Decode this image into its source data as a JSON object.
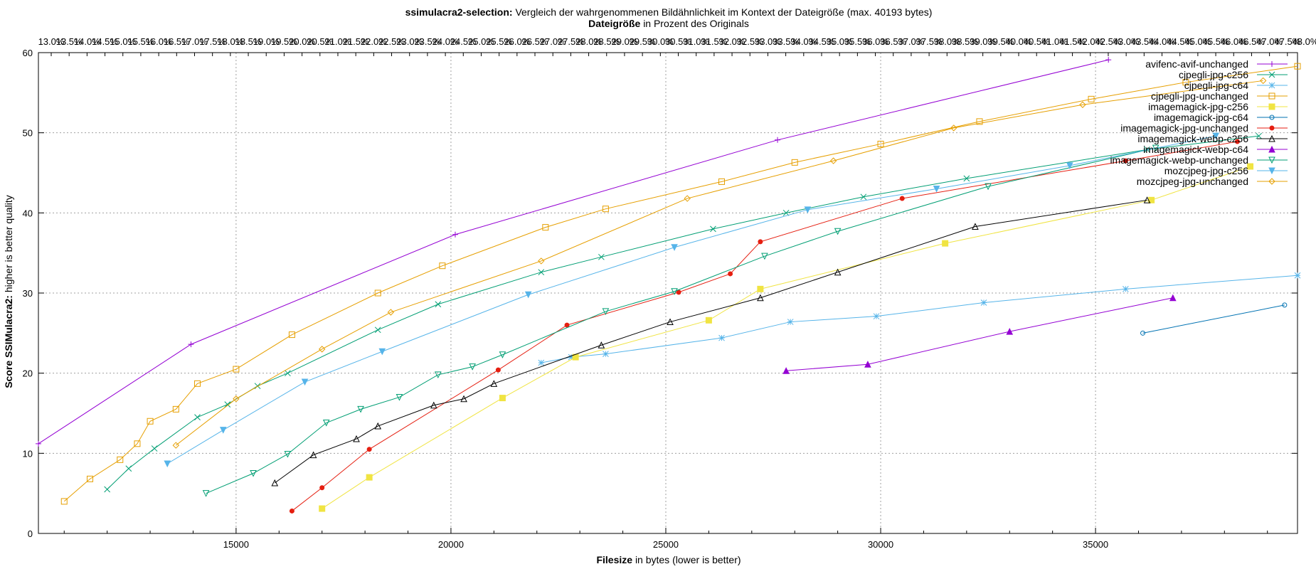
{
  "chart_data": {
    "type": "line",
    "title_bold": "ssimulacra2-selection:",
    "title_rest": "Vergleich der wahrgenommenen Bildähnlichkeit im Kontext der Dateigröße (max. 40193 bytes)",
    "top_axis_bold": "Dateigröße",
    "top_axis_rest": "in Prozent des Originals",
    "xlabel_bold": "Filesize",
    "xlabel_rest": "in bytes (lower is better)",
    "ylabel_bold": "Score SSIMulacra2:",
    "ylabel_rest": "higher is better quality",
    "xlim": [
      10400,
      39700
    ],
    "ylim": [
      0,
      60
    ],
    "x_ticks": [
      15000,
      20000,
      25000,
      30000,
      35000
    ],
    "y_ticks": [
      0,
      10,
      20,
      30,
      40,
      50,
      60
    ],
    "top_ticks": [
      "13.0%",
      "13.5%",
      "14.0%",
      "14.5%",
      "15.0%",
      "15.5%",
      "16.0%",
      "16.5%",
      "17.0%",
      "17.5%",
      "18.0%",
      "18.5%",
      "19.0%",
      "19.5%",
      "20.0%",
      "20.5%",
      "21.0%",
      "21.5%",
      "22.0%",
      "22.5%",
      "23.0%",
      "23.5%",
      "24.0%",
      "24.5%",
      "25.0%",
      "25.5%",
      "26.0%",
      "26.5%",
      "27.0%",
      "27.5%",
      "28.0%",
      "28.5%",
      "29.0%",
      "29.5%",
      "30.0%",
      "30.5%",
      "31.0%",
      "31.5%",
      "32.0%",
      "32.5%",
      "33.0%",
      "33.5%",
      "34.0%",
      "34.5%",
      "35.0%",
      "35.5%",
      "36.0%",
      "36.5%",
      "37.0%",
      "37.5%",
      "38.0%",
      "38.5%",
      "39.0%",
      "39.5%",
      "40.0%",
      "40.5%",
      "41.0%",
      "41.5%",
      "42.0%",
      "42.5%",
      "43.0%",
      "43.5%",
      "44.0%",
      "44.5%",
      "45.0%",
      "45.5%",
      "46.0%",
      "46.5%",
      "47.0%",
      "47.5%",
      "48.0%"
    ],
    "grid": true,
    "legend_position": "top-right",
    "series": [
      {
        "name": "avifenc-avif-unchanged",
        "color": "#9400d3",
        "marker": "plus",
        "x": [
          10400,
          13950,
          20100,
          27600,
          35300
        ],
        "y": [
          11.2,
          23.6,
          37.3,
          49.1,
          59.1
        ]
      },
      {
        "name": "cjpegli-jpg-c256",
        "color": "#009e73",
        "marker": "x",
        "x": [
          12000,
          12500,
          13100,
          14100,
          14800,
          15500,
          16200,
          18300,
          19700,
          22100,
          23500,
          26100,
          27800,
          29600,
          32000,
          36200,
          38800
        ],
        "y": [
          5.5,
          8.1,
          10.6,
          14.5,
          16.1,
          18.4,
          20.0,
          25.4,
          28.6,
          32.6,
          34.5,
          38.0,
          40.0,
          42.0,
          44.3,
          47.9,
          49.6
        ]
      },
      {
        "name": "cjpegli-jpg-c64",
        "color": "#56b4e9",
        "marker": "star",
        "x": [
          22100,
          22800,
          23600,
          26300,
          27900,
          29900,
          32400,
          35700,
          39700
        ],
        "y": [
          21.3,
          22.0,
          22.4,
          24.4,
          26.4,
          27.1,
          28.8,
          30.5,
          32.2
        ]
      },
      {
        "name": "cjpegli-jpg-unchanged",
        "color": "#e69f00",
        "marker": "square",
        "x": [
          11000,
          11600,
          12300,
          12700,
          13000,
          13600,
          14100,
          15000,
          16300,
          18300,
          19800,
          22200,
          23600,
          26300,
          28000,
          30000,
          32300,
          34900,
          37100,
          39700
        ],
        "y": [
          4.0,
          6.8,
          9.2,
          11.2,
          14.0,
          15.5,
          18.7,
          20.5,
          24.8,
          30.0,
          33.4,
          38.2,
          40.5,
          43.9,
          46.3,
          48.6,
          51.4,
          54.2,
          56.3,
          58.3
        ]
      },
      {
        "name": "imagemagick-jpg-c256",
        "color": "#f0e442",
        "marker": "square-filled",
        "x": [
          17000,
          18100,
          21200,
          22900,
          26000,
          27200,
          31500,
          36300,
          38600
        ],
        "y": [
          3.1,
          7.0,
          16.9,
          22.0,
          26.6,
          30.5,
          36.2,
          41.6,
          45.8
        ]
      },
      {
        "name": "imagemagick-jpg-c64",
        "color": "#0072b2",
        "marker": "circle",
        "x": [
          36100,
          39400
        ],
        "y": [
          25.0,
          28.5
        ]
      },
      {
        "name": "imagemagick-jpg-unchanged",
        "color": "#e51e10",
        "marker": "circle-filled",
        "x": [
          16300,
          17000,
          18100,
          21100,
          22700,
          25300,
          26500,
          27200,
          30500,
          35700,
          38300
        ],
        "y": [
          2.8,
          5.7,
          10.5,
          20.4,
          26.0,
          30.1,
          32.4,
          36.4,
          41.8,
          46.5,
          48.9
        ]
      },
      {
        "name": "imagemagick-webp-c256",
        "color": "#000000",
        "marker": "triangle",
        "x": [
          15900,
          16800,
          17800,
          18300,
          19600,
          20300,
          21000,
          23500,
          25100,
          27200,
          29000,
          32200,
          36200
        ],
        "y": [
          6.3,
          9.8,
          11.8,
          13.4,
          16.0,
          16.8,
          18.7,
          23.5,
          26.4,
          29.4,
          32.6,
          38.3,
          41.6
        ]
      },
      {
        "name": "imagemagick-webp-c64",
        "color": "#9400d3",
        "marker": "triangle-filled",
        "x": [
          27800,
          29700,
          33000,
          36800
        ],
        "y": [
          20.3,
          21.1,
          25.2,
          29.4
        ]
      },
      {
        "name": "imagemagick-webp-unchanged",
        "color": "#009e73",
        "marker": "triangle-down",
        "x": [
          14300,
          15400,
          16200,
          17100,
          17900,
          18800,
          19700,
          20500,
          21200,
          23600,
          25200,
          27300,
          29000,
          32500,
          36400
        ],
        "y": [
          5.0,
          7.5,
          9.9,
          13.8,
          15.5,
          17.0,
          19.8,
          20.8,
          22.3,
          27.7,
          30.2,
          34.6,
          37.7,
          43.3,
          48.1
        ]
      },
      {
        "name": "mozcjpeg-jpg-c256",
        "color": "#56b4e9",
        "marker": "triangle-down-filled",
        "x": [
          13400,
          14700,
          16600,
          18400,
          21800,
          25200,
          28300,
          31300,
          34400,
          37800
        ],
        "y": [
          8.7,
          12.9,
          18.9,
          22.7,
          29.8,
          35.7,
          40.4,
          43.0,
          45.9,
          49.6
        ]
      },
      {
        "name": "mozcjpeg-jpg-unchanged",
        "color": "#e69f00",
        "marker": "diamond",
        "x": [
          13600,
          15000,
          17000,
          18600,
          22100,
          25500,
          28900,
          31700,
          34700,
          38900
        ],
        "y": [
          11.0,
          16.8,
          23.0,
          27.6,
          34.0,
          41.8,
          46.5,
          50.6,
          53.5,
          56.5
        ]
      }
    ]
  }
}
